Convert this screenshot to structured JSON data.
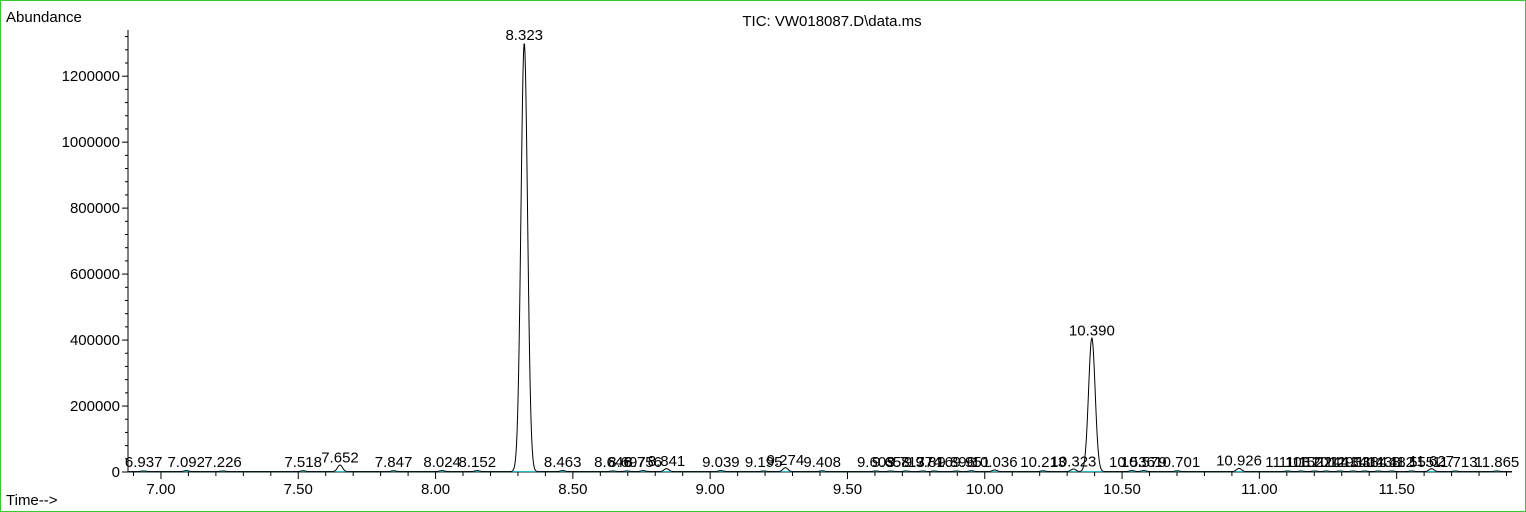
{
  "chart_data": {
    "type": "line",
    "title": "TIC: VW018087.D\\data.ms",
    "ylabel": "Abundance",
    "xlabel": "Time-->",
    "xlim": [
      6.88,
      11.92
    ],
    "ylim": [
      0,
      1340000
    ],
    "x_ticks": [
      7.0,
      7.5,
      8.0,
      8.5,
      9.0,
      9.5,
      10.0,
      10.5,
      11.0,
      11.5
    ],
    "x_tick_labels": [
      "7.00",
      "7.50",
      "8.00",
      "8.50",
      "9.00",
      "9.50",
      "10.00",
      "10.50",
      "11.00",
      "11.50"
    ],
    "y_ticks": [
      0,
      200000,
      400000,
      600000,
      800000,
      1000000,
      1200000
    ],
    "y_tick_labels": [
      "0",
      "200000",
      "400000",
      "600000",
      "800000",
      "1000000",
      "1200000"
    ],
    "colors": {
      "trace": "#000000",
      "baseline": "#00b0c0",
      "frame": "#33cc33"
    },
    "peaks": [
      {
        "rt": 6.937,
        "label": "6.937",
        "height": 2000
      },
      {
        "rt": 7.092,
        "label": "7.092",
        "height": 3000
      },
      {
        "rt": 7.226,
        "label": "7.226",
        "height": 2000
      },
      {
        "rt": 7.518,
        "label": "7.518",
        "height": 2500
      },
      {
        "rt": 7.652,
        "label": "7.652",
        "height": 20000
      },
      {
        "rt": 7.847,
        "label": "7.847",
        "height": 2500
      },
      {
        "rt": 8.024,
        "label": "8.024",
        "height": 3000
      },
      {
        "rt": 8.152,
        "label": "8.152",
        "height": 3000
      },
      {
        "rt": 8.323,
        "label": "8.323",
        "height": 1300000
      },
      {
        "rt": 8.463,
        "label": "8.463",
        "height": 3000
      },
      {
        "rt": 8.646,
        "label": "8.646",
        "height": 2000
      },
      {
        "rt": 8.697,
        "label": "8.697",
        "height": 2000
      },
      {
        "rt": 8.756,
        "label": "8.756",
        "height": 3000
      },
      {
        "rt": 8.841,
        "label": "8.841",
        "height": 9000
      },
      {
        "rt": 9.039,
        "label": "9.039",
        "height": 3000
      },
      {
        "rt": 9.195,
        "label": "9.195",
        "height": 2000
      },
      {
        "rt": 9.274,
        "label": "9.274",
        "height": 12000
      },
      {
        "rt": 9.408,
        "label": "9.408",
        "height": 2500
      },
      {
        "rt": 9.603,
        "label": "9.603",
        "height": 2000
      },
      {
        "rt": 9.658,
        "label": "9.658",
        "height": 2000
      },
      {
        "rt": 9.713,
        "label": "9.713",
        "height": 2000
      },
      {
        "rt": 9.774,
        "label": "9.774",
        "height": 2000
      },
      {
        "rt": 9.816,
        "label": "9.816",
        "height": 2000
      },
      {
        "rt": 9.896,
        "label": "9.896",
        "height": 2000
      },
      {
        "rt": 9.951,
        "label": "9.951",
        "height": 2500
      },
      {
        "rt": 10.036,
        "label": "10.036",
        "height": 5000
      },
      {
        "rt": 10.213,
        "label": "10.213",
        "height": 2500
      },
      {
        "rt": 10.323,
        "label": "10.323",
        "height": 8000
      },
      {
        "rt": 10.39,
        "label": "10.390",
        "height": 405000
      },
      {
        "rt": 10.536,
        "label": "10.536",
        "height": 3000
      },
      {
        "rt": 10.579,
        "label": "10.579",
        "height": 3000
      },
      {
        "rt": 10.701,
        "label": "10.701",
        "height": 2500
      },
      {
        "rt": 10.926,
        "label": "10.926",
        "height": 10000
      },
      {
        "rt": 11.103,
        "label": "11.103",
        "height": 2000
      },
      {
        "rt": 11.152,
        "label": "11.152",
        "height": 2000
      },
      {
        "rt": 11.201,
        "label": "11.201",
        "height": 2000
      },
      {
        "rt": 11.244,
        "label": "11.244",
        "height": 2000
      },
      {
        "rt": 11.293,
        "label": "11.293",
        "height": 2000
      },
      {
        "rt": 11.341,
        "label": "11.341",
        "height": 2000
      },
      {
        "rt": 11.384,
        "label": "11.384",
        "height": 2000
      },
      {
        "rt": 11.433,
        "label": "11.433",
        "height": 2000
      },
      {
        "rt": 11.482,
        "label": "11.482",
        "height": 2000
      },
      {
        "rt": 11.555,
        "label": "11.555",
        "height": 2000
      },
      {
        "rt": 11.627,
        "label": "11.627",
        "height": 9000
      },
      {
        "rt": 11.713,
        "label": "11.713",
        "height": 2000
      },
      {
        "rt": 11.865,
        "label": "11.865",
        "height": 2000
      }
    ]
  }
}
